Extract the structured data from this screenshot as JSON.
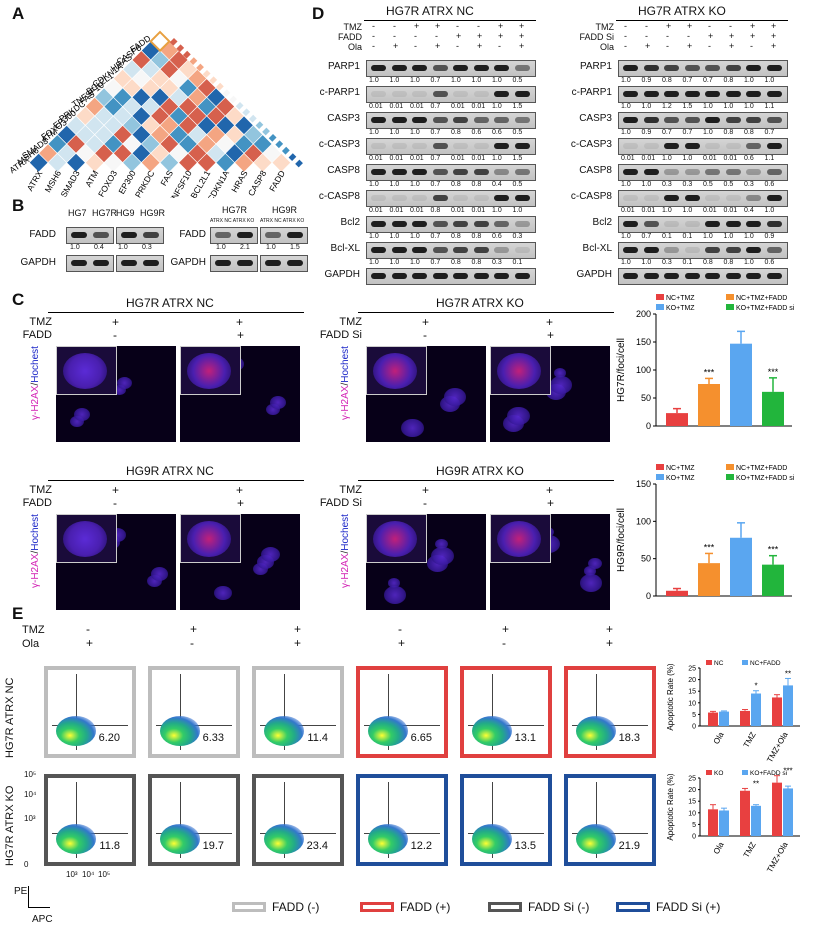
{
  "panelA": {
    "letter": "A",
    "labels": [
      "FADD",
      "CASP8",
      "HRAS",
      "CDKN1A",
      "BCL2L1",
      "TNFSF10",
      "FAS",
      "PRKDC",
      "EP300",
      "FOXO3",
      "ATM",
      "SMAD3",
      "MSH6",
      "ATRX"
    ]
  },
  "panelB": {
    "letter": "B",
    "left": {
      "cols": [
        "HG7",
        "HG7R",
        "HG9",
        "HG9R"
      ],
      "vals": [
        "1.0",
        "0.4",
        "1.0",
        "0.3"
      ],
      "rows": [
        "FADD",
        "GAPDH"
      ]
    },
    "right": {
      "groups": [
        "HG7R",
        "HG9R"
      ],
      "sub": "ATRX NC ATRX KO",
      "vals": [
        "1.0",
        "2.1",
        "1.0",
        "1.5"
      ],
      "rows": [
        "FADD",
        "GAPDH"
      ]
    }
  },
  "panelD": {
    "letter": "D",
    "nc": {
      "title": "HG7R ATRX NC",
      "conds": [
        "TMZ",
        "FADD",
        "Ola"
      ],
      "signs": [
        [
          "-",
          "-",
          "+",
          "+",
          "-",
          "-",
          "+",
          "+"
        ],
        [
          "-",
          "-",
          "-",
          "-",
          "+",
          "+",
          "+",
          "+"
        ],
        [
          "-",
          "+",
          "-",
          "+",
          "-",
          "+",
          "-",
          "+"
        ]
      ],
      "rows": [
        {
          "name": "PARP1",
          "vals": [
            "1.0",
            "1.0",
            "1.0",
            "0.7",
            "1.0",
            "1.0",
            "1.0",
            "0.5"
          ]
        },
        {
          "name": "c-PARP1",
          "vals": [
            "0.01",
            "0.01",
            "0.01",
            "0.7",
            "0.01",
            "0.01",
            "1.0",
            "1.5"
          ]
        },
        {
          "name": "CASP3",
          "vals": [
            "1.0",
            "1.0",
            "1.0",
            "0.7",
            "0.8",
            "0.6",
            "0.6",
            "0.5"
          ]
        },
        {
          "name": "c-CASP3",
          "vals": [
            "0.01",
            "0.01",
            "0.01",
            "0.7",
            "0.01",
            "0.01",
            "1.0",
            "1.5"
          ]
        },
        {
          "name": "CASP8",
          "vals": [
            "1.0",
            "1.0",
            "1.0",
            "0.7",
            "0.8",
            "0.8",
            "0.4",
            "0.5"
          ]
        },
        {
          "name": "c-CASP8",
          "vals": [
            "0.01",
            "0.01",
            "0.01",
            "0.8",
            "0.01",
            "0.01",
            "1.0",
            "1.0"
          ]
        },
        {
          "name": "Bcl2",
          "vals": [
            "1.0",
            "1.0",
            "1.0",
            "0.7",
            "0.8",
            "0.8",
            "0.6",
            "0.3"
          ]
        },
        {
          "name": "Bcl-XL",
          "vals": [
            "1.0",
            "1.0",
            "1.0",
            "0.7",
            "0.8",
            "0.8",
            "0.3",
            "0.1"
          ]
        },
        {
          "name": "GAPDH",
          "vals": []
        }
      ]
    },
    "ko": {
      "title": "HG7R ATRX KO",
      "conds": [
        "TMZ",
        "FADD Si",
        "Ola"
      ],
      "signs": [
        [
          "-",
          "-",
          "+",
          "+",
          "-",
          "-",
          "+",
          "+"
        ],
        [
          "-",
          "-",
          "-",
          "-",
          "+",
          "+",
          "+",
          "+"
        ],
        [
          "-",
          "+",
          "-",
          "+",
          "-",
          "+",
          "-",
          "+"
        ]
      ],
      "rows": [
        {
          "name": "PARP1",
          "vals": [
            "1.0",
            "0.9",
            "0.8",
            "0.7",
            "0.7",
            "0.8",
            "1.0",
            "1.0"
          ]
        },
        {
          "name": "c-PARP1",
          "vals": [
            "1.0",
            "1.0",
            "1.2",
            "1.5",
            "1.0",
            "1.0",
            "1.0",
            "1.1"
          ]
        },
        {
          "name": "CASP3",
          "vals": [
            "1.0",
            "0.9",
            "0.7",
            "0.7",
            "1.0",
            "0.8",
            "0.8",
            "0.7"
          ]
        },
        {
          "name": "c-CASP3",
          "vals": [
            "0.01",
            "0.01",
            "1.0",
            "1.0",
            "0.01",
            "0.01",
            "0.6",
            "1.1"
          ]
        },
        {
          "name": "CASP8",
          "vals": [
            "1.0",
            "1.0",
            "0.3",
            "0.3",
            "0.5",
            "0.5",
            "0.3",
            "0.6"
          ]
        },
        {
          "name": "c-CASP8",
          "vals": [
            "0.01",
            "0.01",
            "1.0",
            "1.0",
            "0.01",
            "0.01",
            "0.4",
            "1.0"
          ]
        },
        {
          "name": "Bcl2",
          "vals": [
            "1.0",
            "0.7",
            "0.1",
            "0.1",
            "1.0",
            "1.0",
            "1.0",
            "0.9"
          ]
        },
        {
          "name": "Bcl-XL",
          "vals": [
            "1.0",
            "1.0",
            "0.3",
            "0.1",
            "0.8",
            "0.8",
            "1.0",
            "0.6"
          ]
        },
        {
          "name": "GAPDH",
          "vals": []
        }
      ]
    }
  },
  "panelC": {
    "letter": "C",
    "blocks": [
      {
        "title": "HG7R ATRX NC",
        "c1": "TMZ",
        "c2": "FADD",
        "s1": [
          "+",
          "+"
        ],
        "s2": [
          "-",
          "+"
        ]
      },
      {
        "title": "HG7R ATRX KO",
        "c1": "TMZ",
        "c2": "FADD Si",
        "s1": [
          "+",
          "+"
        ],
        "s2": [
          "-",
          "+"
        ]
      },
      {
        "title": "HG9R ATRX NC",
        "c1": "TMZ",
        "c2": "FADD",
        "s1": [
          "+",
          "+"
        ],
        "s2": [
          "-",
          "+"
        ]
      },
      {
        "title": "HG9R ATRX KO",
        "c1": "TMZ",
        "c2": "FADD Si",
        "s1": [
          "+",
          "+"
        ],
        "s2": [
          "-",
          "+"
        ]
      }
    ],
    "stain_a": "γ-H2AX",
    "stain_b": "Hochest"
  },
  "panelE": {
    "letter": "E",
    "conds": [
      {
        "label": "TMZ",
        "signs": [
          "-",
          "+",
          "+",
          "-",
          "+",
          "+"
        ]
      },
      {
        "label": "Ola",
        "signs": [
          "+",
          "-",
          "+",
          "+",
          "-",
          "+"
        ]
      }
    ],
    "rows": [
      {
        "label": "HG7R ATRX NC",
        "nums": [
          "6.20",
          "6.33",
          "11.4",
          "6.65",
          "13.1",
          "18.3"
        ]
      },
      {
        "label": "HG7R ATRX KO",
        "nums": [
          "11.8",
          "19.7",
          "23.4",
          "12.2",
          "13.5",
          "21.9"
        ]
      }
    ],
    "axis": {
      "y": "PE",
      "x": "APC",
      "ticks": [
        "10⁵",
        "10⁴",
        "10³",
        "0",
        "10³",
        "10⁴",
        "10⁵"
      ]
    },
    "legend": [
      {
        "label": "FADD (-)",
        "color": "#bdbdbd"
      },
      {
        "label": "FADD (+)",
        "color": "#e0403f"
      },
      {
        "label": "FADD Si (-)",
        "color": "#555555"
      },
      {
        "label": "FADD Si (+)",
        "color": "#1f4e9a"
      }
    ]
  },
  "chart_data": [
    {
      "type": "bar",
      "categories": [
        "NC+TMZ",
        "NC+TMZ+FADD",
        "KO+TMZ",
        "KO+TMZ+FADD si"
      ],
      "values": [
        23,
        75,
        147,
        61
      ],
      "errors": [
        8,
        10,
        22,
        25
      ],
      "ylabel": "HG7R/foci/cell",
      "ylim": [
        0,
        200
      ],
      "yticks": [
        0,
        50,
        100,
        150,
        200
      ],
      "sig": [
        "",
        "***",
        "",
        "***"
      ],
      "colors": [
        "#e84040",
        "#f5902e",
        "#5aa6f0",
        "#22b53c"
      ]
    },
    {
      "type": "bar",
      "categories": [
        "NC+TMZ",
        "NC+TMZ+FADD",
        "KO+TMZ",
        "KO+TMZ+FADD si"
      ],
      "values": [
        7,
        44,
        78,
        42
      ],
      "errors": [
        3,
        13,
        20,
        12
      ],
      "ylabel": "HG9R/foci/cell",
      "ylim": [
        0,
        150
      ],
      "yticks": [
        0,
        50,
        100,
        150
      ],
      "sig": [
        "",
        "***",
        "",
        "***"
      ],
      "colors": [
        "#e84040",
        "#f5902e",
        "#5aa6f0",
        "#22b53c"
      ]
    },
    {
      "type": "bar",
      "categories": [
        "Ola",
        "TMZ",
        "TMZ+Ola"
      ],
      "series": [
        {
          "name": "NC",
          "values": [
            5.8,
            6.5,
            12.3
          ],
          "errors": [
            0.5,
            0.6,
            1.2
          ],
          "color": "#e84040"
        },
        {
          "name": "NC+FADD",
          "values": [
            6.2,
            14,
            17.5
          ],
          "errors": [
            0.3,
            1.2,
            3
          ],
          "color": "#5aa6f0"
        }
      ],
      "ylabel": "Apoptotic Rate (%)",
      "ylim": [
        0,
        25
      ],
      "yticks": [
        0,
        5,
        10,
        15,
        20,
        25
      ],
      "sig": [
        "",
        "*",
        "**"
      ]
    },
    {
      "type": "bar",
      "categories": [
        "Ola",
        "TMZ",
        "TMZ+Ola"
      ],
      "series": [
        {
          "name": "KO",
          "values": [
            11.5,
            19.5,
            23
          ],
          "errors": [
            2,
            1,
            3
          ],
          "color": "#e84040"
        },
        {
          "name": "KO+FADD si",
          "values": [
            11,
            13,
            20.5
          ],
          "errors": [
            1,
            0.5,
            1
          ],
          "color": "#5aa6f0"
        }
      ],
      "ylabel": "Apoptotic Rate (%)",
      "ylim": [
        0,
        25
      ],
      "yticks": [
        0,
        5,
        10,
        15,
        20,
        25
      ],
      "sig": [
        "",
        "**",
        "***"
      ]
    }
  ]
}
